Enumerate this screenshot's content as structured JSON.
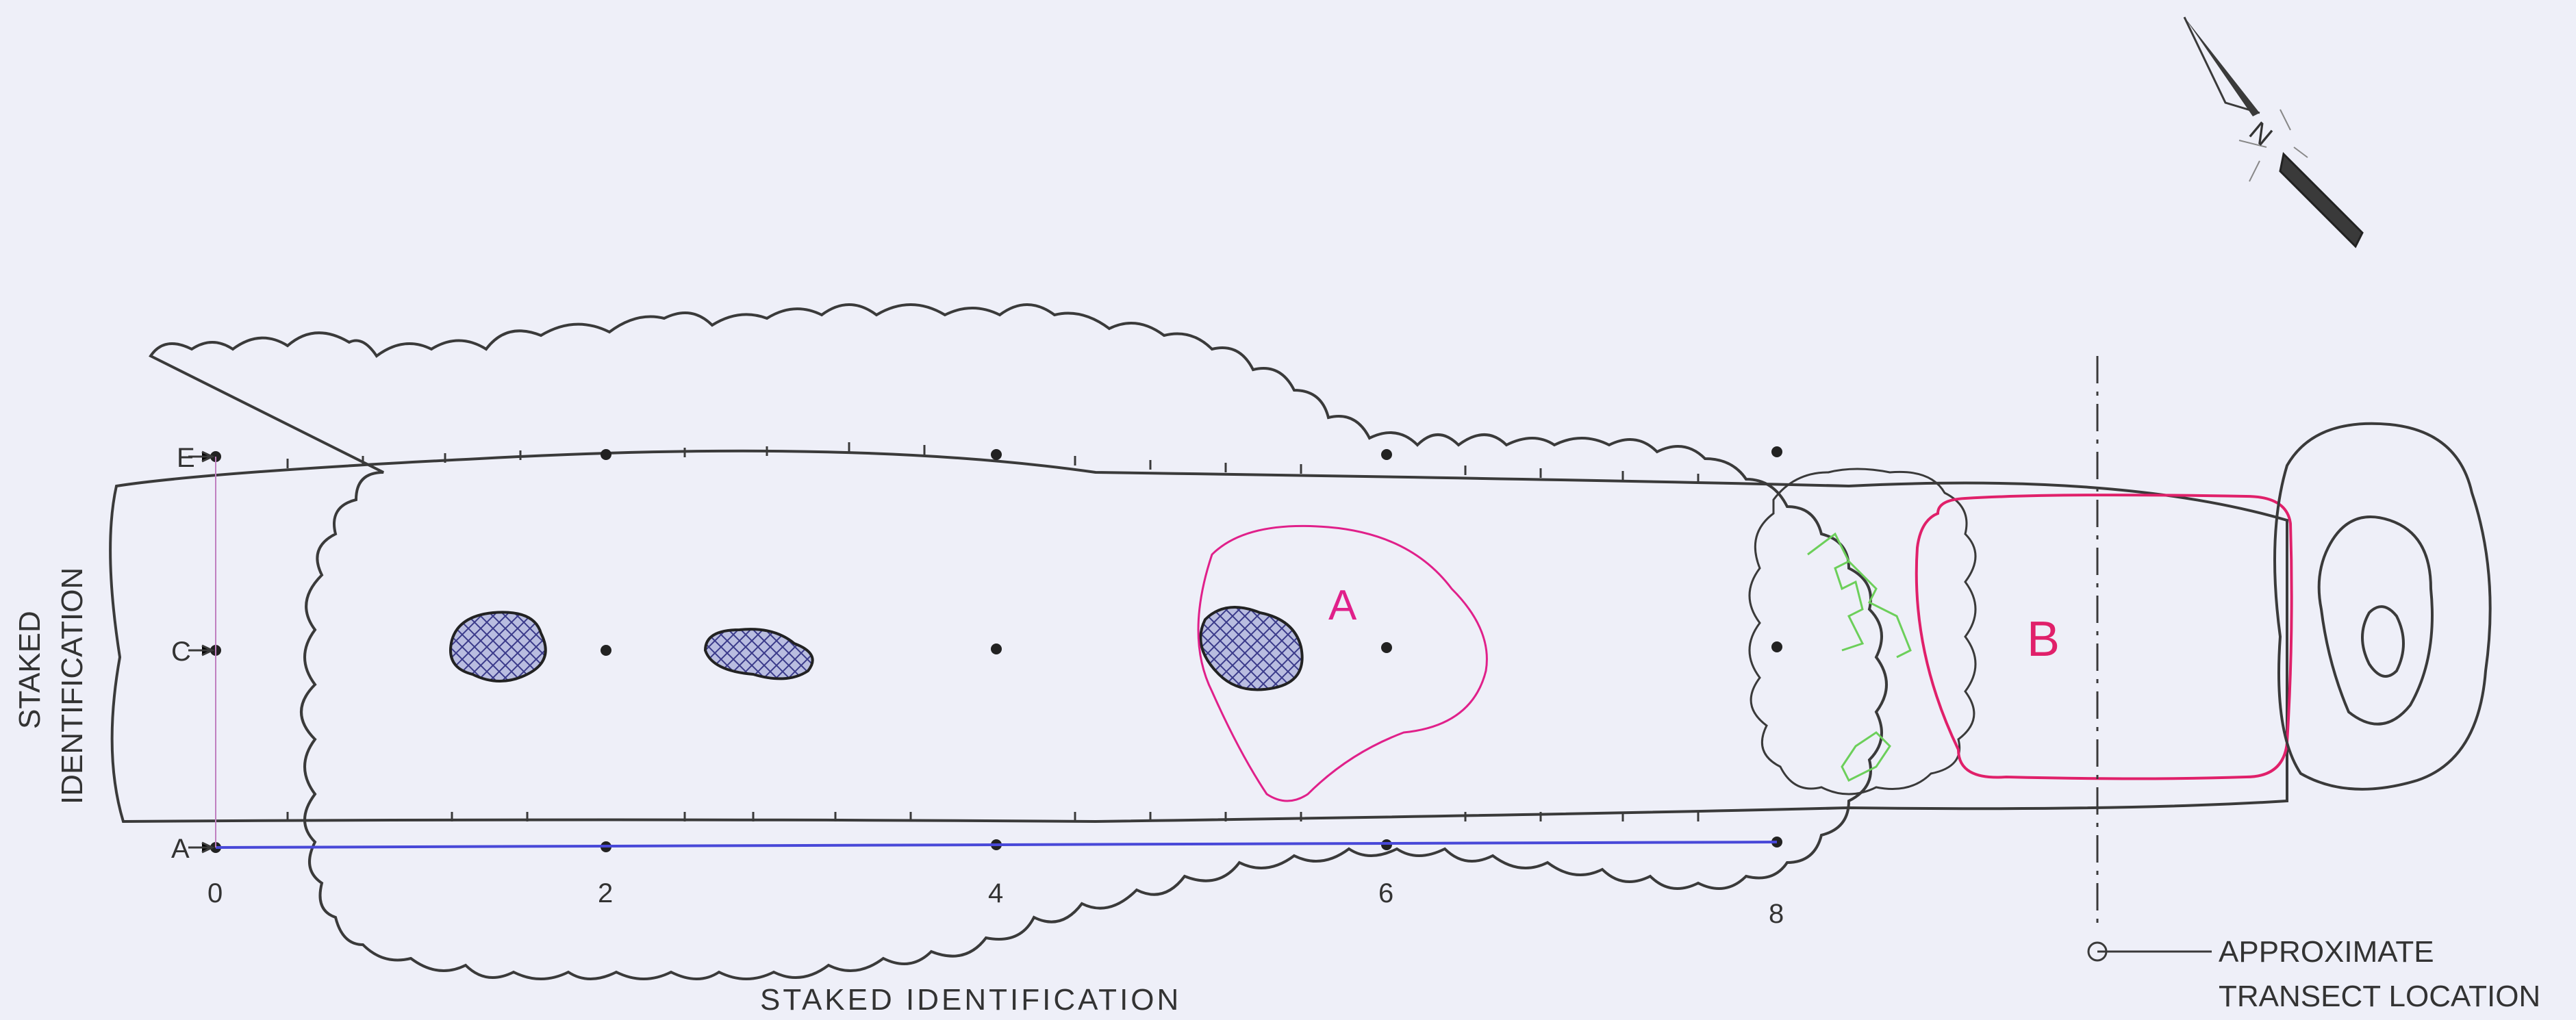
{
  "colors": {
    "background": "#eeeff8",
    "line": "#3a3a3a",
    "zone_a": "#e0208a",
    "zone_b": "#e0206a",
    "green_marks": "#6ccf5a",
    "blue_transect": "#4848d8",
    "crosshatch": "#3a3a8a"
  },
  "labels": {
    "staked_left": "STAKED IDENTIFICATION",
    "staked_left_line1": "STAKED",
    "staked_left_line2": "IDENTIFICATION",
    "staked_bottom": "STAKED IDENTIFICATION",
    "legend_line1": "APPROXIMATE",
    "legend_line2": "TRANSECT LOCATION",
    "north": "N"
  },
  "rows": [
    "E",
    "C",
    "A"
  ],
  "stations": [
    "0",
    "2",
    "4",
    "6",
    "8"
  ],
  "zones": [
    "A",
    "B"
  ],
  "icons": {
    "north_arrow": "north-arrow-icon",
    "transect_symbol": "transect-marker-icon"
  }
}
